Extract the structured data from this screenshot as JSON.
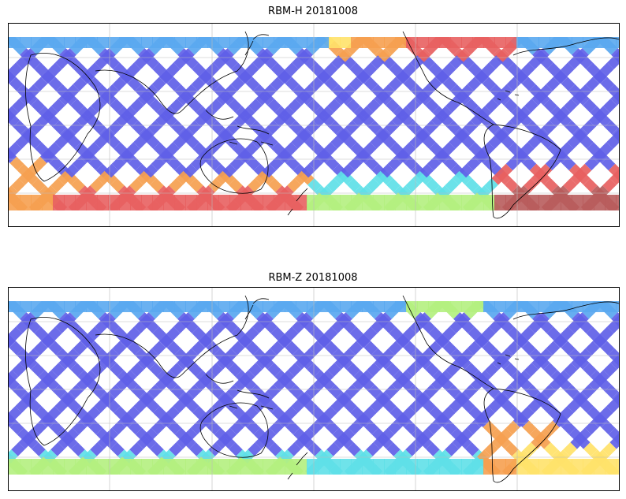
{
  "maps": [
    {
      "title": "RBM-H 20181008",
      "field_color_high": "#b85c5c",
      "field_color_mid": "#ffe26a",
      "field_color_low": "#6a6ae8"
    },
    {
      "title": "RBM-Z 20181008",
      "field_color_high": "#f4a350",
      "field_color_mid": "#c8f07a",
      "field_color_low": "#6a6ae8"
    }
  ],
  "colormap": [
    "#6060e8",
    "#5aa8f0",
    "#5fe0e8",
    "#b4f080",
    "#ffe26a",
    "#f6a050",
    "#e86060",
    "#b85c5c"
  ],
  "map_features": [
    "coastlines",
    "gridlines",
    "satellite-swath-grid"
  ]
}
